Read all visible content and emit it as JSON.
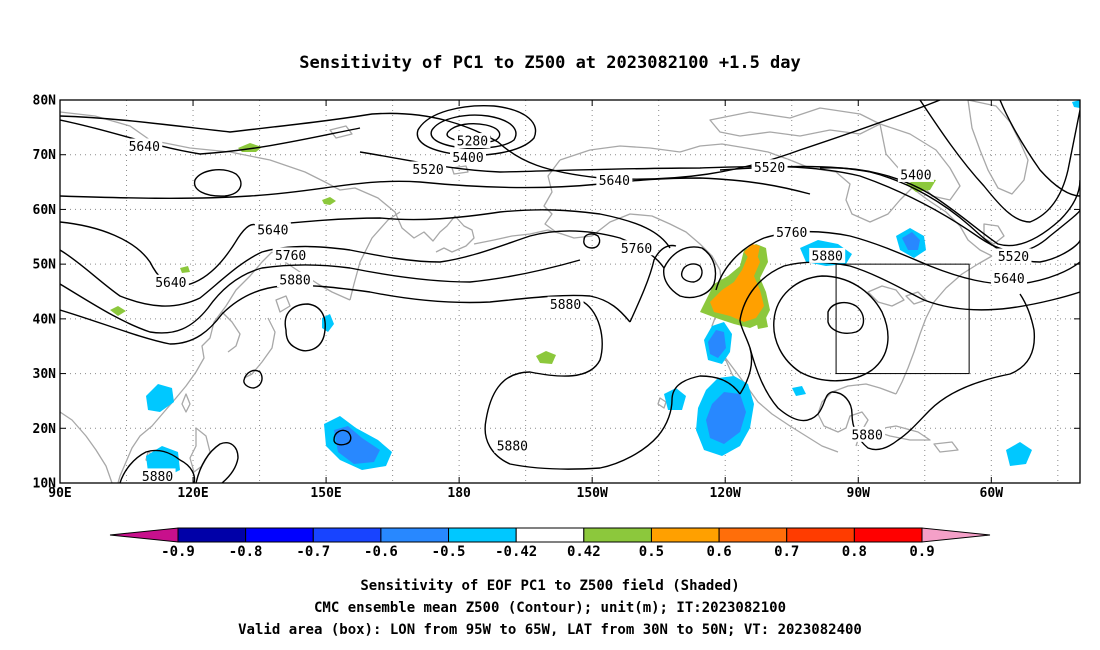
{
  "title": "Sensitivity of PC1 to Z500 at 2023082100 +1.5 day",
  "map": {
    "lon_range_deg_east": [
      90,
      320
    ],
    "lat_range_deg": [
      10,
      80
    ],
    "lon_ticks": [
      {
        "lon": 90,
        "label": "90E"
      },
      {
        "lon": 120,
        "label": "120E"
      },
      {
        "lon": 150,
        "label": "150E"
      },
      {
        "lon": 180,
        "label": "180"
      },
      {
        "lon": 210,
        "label": "150W"
      },
      {
        "lon": 240,
        "label": "120W"
      },
      {
        "lon": 270,
        "label": "90W"
      },
      {
        "lon": 300,
        "label": "60W"
      }
    ],
    "lat_ticks": [
      {
        "lat": 80,
        "label": "80N"
      },
      {
        "lat": 70,
        "label": "70N"
      },
      {
        "lat": 60,
        "label": "60N"
      },
      {
        "lat": 50,
        "label": "50N"
      },
      {
        "lat": 40,
        "label": "40N"
      },
      {
        "lat": 30,
        "label": "30N"
      },
      {
        "lat": 20,
        "label": "20N"
      },
      {
        "lat": 10,
        "label": "10N"
      }
    ],
    "grid": true,
    "coastline_color": "#a8a8a8",
    "contour_color": "#000000",
    "valid_box": {
      "lon": [
        265,
        295
      ],
      "lat": [
        30,
        50
      ]
    }
  },
  "contour_labels": [
    {
      "text": "5640",
      "lon": 109,
      "lat": 71.5
    },
    {
      "text": "5280",
      "lon": 183,
      "lat": 72.5
    },
    {
      "text": "5400",
      "lon": 182,
      "lat": 69.5
    },
    {
      "text": "5520",
      "lon": 173,
      "lat": 67.3
    },
    {
      "text": "5640",
      "lon": 215,
      "lat": 65.3
    },
    {
      "text": "5520",
      "lon": 250,
      "lat": 67.7
    },
    {
      "text": "5400",
      "lon": 283,
      "lat": 66.3
    },
    {
      "text": "5640",
      "lon": 138,
      "lat": 56.2
    },
    {
      "text": "5760",
      "lon": 142,
      "lat": 51.6
    },
    {
      "text": "5640",
      "lon": 115,
      "lat": 46.6
    },
    {
      "text": "5880",
      "lon": 143,
      "lat": 47.1
    },
    {
      "text": "5760",
      "lon": 220,
      "lat": 52.9
    },
    {
      "text": "5760",
      "lon": 255,
      "lat": 55.8
    },
    {
      "text": "5880",
      "lon": 263,
      "lat": 51.5
    },
    {
      "text": "5880",
      "lon": 204,
      "lat": 42.6
    },
    {
      "text": "5520",
      "lon": 305,
      "lat": 51.4
    },
    {
      "text": "5640",
      "lon": 304,
      "lat": 47.4
    },
    {
      "text": "5880",
      "lon": 192,
      "lat": 16.8
    },
    {
      "text": "5880",
      "lon": 112,
      "lat": 11.2
    },
    {
      "text": "5880",
      "lon": 272,
      "lat": 18.8
    }
  ],
  "colorbar": {
    "levels": [
      "-0.9",
      "-0.8",
      "-0.7",
      "-0.6",
      "-0.5",
      "-0.42",
      "0.42",
      "0.5",
      "0.6",
      "0.7",
      "0.8",
      "0.9"
    ],
    "colors": [
      "#c8108c",
      "#0000a8",
      "#0000ff",
      "#1844ff",
      "#2888ff",
      "#00c8ff",
      "#ffffff",
      "#8cc83c",
      "#ffa000",
      "#ff6e0a",
      "#ff3c00",
      "#ff0000",
      "#f4a0c8"
    ]
  },
  "caption": {
    "line1": "Sensitivity of EOF PC1 to Z500 field (Shaded)",
    "line2": "CMC ensemble mean Z500 (Contour); unit(m); IT:2023082100",
    "line3": "Valid area (box): LON from 95W to 65W, LAT from 30N to 50N; VT: 2023082400"
  }
}
